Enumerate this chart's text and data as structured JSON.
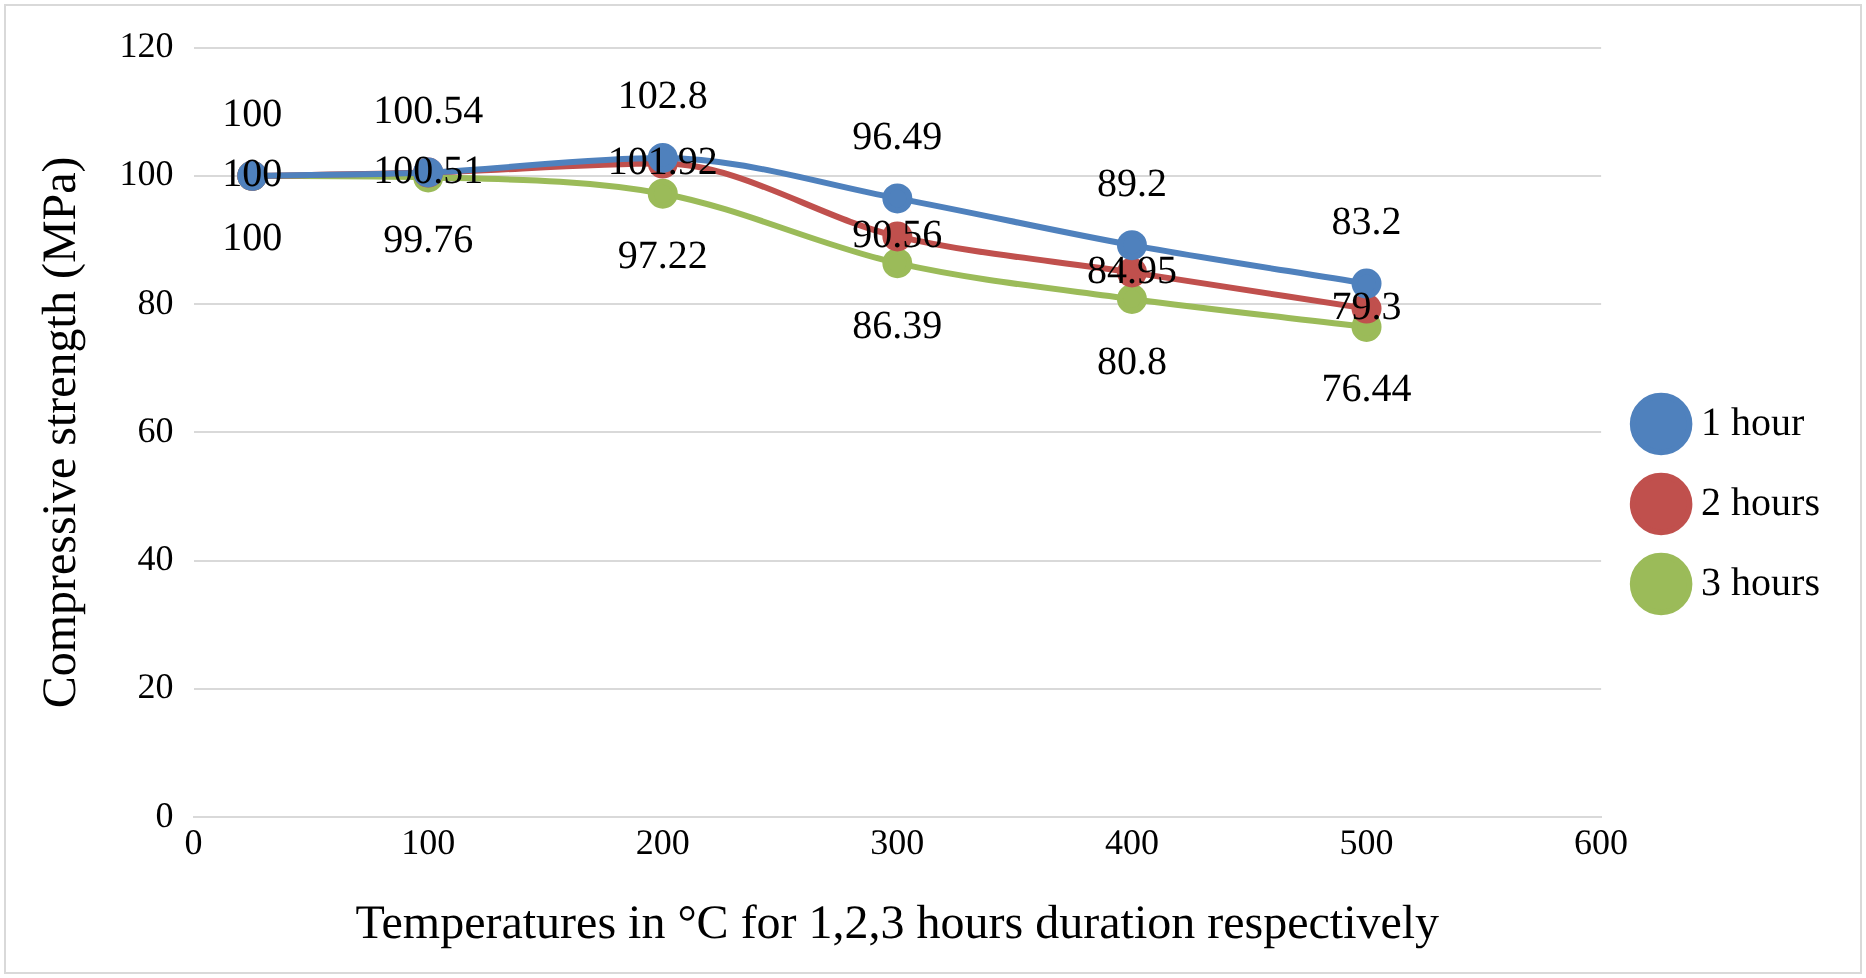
{
  "chart_data": {
    "type": "line",
    "xlabel": "Temperatures in °C for 1,2,3 hours duration respectively",
    "ylabel": "Compressive strength (MPa)",
    "x": [
      25,
      100,
      200,
      300,
      400,
      500
    ],
    "series": [
      {
        "name": "1 hour",
        "color": "#4f81bd",
        "values": [
          100,
          100.54,
          102.8,
          96.49,
          89.2,
          83.2
        ]
      },
      {
        "name": "2 hours",
        "color": "#c0504d",
        "values": [
          100,
          100.51,
          101.92,
          90.56,
          84.95,
          79.3
        ]
      },
      {
        "name": "3 hours",
        "color": "#9bbb59",
        "values": [
          100,
          99.76,
          97.22,
          86.39,
          80.8,
          76.44
        ]
      }
    ],
    "xlim": [
      0,
      600
    ],
    "xticks": [
      0,
      100,
      200,
      300,
      400,
      500,
      600
    ],
    "ylim": [
      0,
      120
    ],
    "yticks": [
      0,
      20,
      40,
      60,
      80,
      100,
      120
    ],
    "grid": "y",
    "legend": "right",
    "marker": "circle",
    "line_style": "solid",
    "data_labels": true
  }
}
